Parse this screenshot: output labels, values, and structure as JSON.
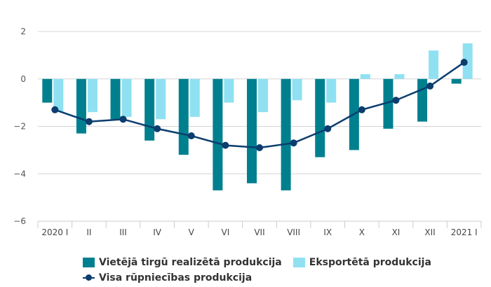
{
  "chart_data": {
    "type": "bar",
    "title": "",
    "xlabel": "",
    "ylabel": "",
    "ylim": [
      -6,
      2
    ],
    "yticks": [
      2,
      0,
      -2,
      -4,
      -6
    ],
    "grid": true,
    "legend_position": "bottom",
    "categories": [
      "2020 I",
      "II",
      "III",
      "IV",
      "V",
      "VI",
      "VII",
      "VIII",
      "IX",
      "X",
      "XI",
      "XII",
      "2021 I"
    ],
    "series": [
      {
        "name": "Vietējā tirgū realizētā produkcija",
        "kind": "bar",
        "color": "#00808f",
        "values": [
          -1.0,
          -2.3,
          -1.7,
          -2.6,
          -3.2,
          -4.7,
          -4.4,
          -4.7,
          -3.3,
          -3.0,
          -2.1,
          -1.8,
          -0.2
        ]
      },
      {
        "name": "Eksportētā produkcija",
        "kind": "bar",
        "color": "#8fe1f2",
        "values": [
          -1.4,
          -1.4,
          -1.6,
          -1.7,
          -1.6,
          -1.0,
          -1.4,
          -0.9,
          -1.0,
          0.2,
          0.2,
          1.2,
          1.5
        ]
      },
      {
        "name": "Visa rūpniecības produkcija",
        "kind": "line",
        "color": "#0b3d6e",
        "values": [
          -1.3,
          -1.8,
          -1.7,
          -2.1,
          -2.4,
          -2.8,
          -2.9,
          -2.7,
          -2.1,
          -1.3,
          -0.9,
          -0.3,
          0.7
        ]
      }
    ]
  },
  "legend": {
    "items": [
      {
        "label": "Vietējā tirgū realizētā produkcija"
      },
      {
        "label": "Eksportētā produkcija"
      },
      {
        "label": "Visa rūpniecības produkcija"
      }
    ]
  }
}
